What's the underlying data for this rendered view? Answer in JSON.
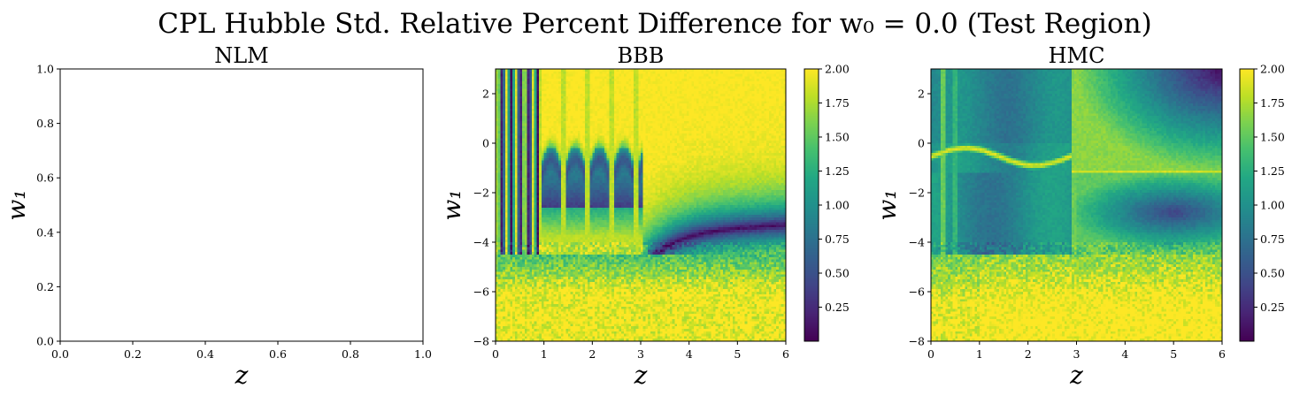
{
  "figure": {
    "title": "CPL Hubble Std. Relative Percent Difference for w₀ = 0.0 (Test Region)"
  },
  "chart_data": [
    {
      "type": "heatmap",
      "title": "NLM",
      "xlabel": "z",
      "ylabel": "w₁",
      "xlim": [
        0.0,
        1.0
      ],
      "ylim": [
        0.0,
        1.0
      ],
      "xticks": [
        "0.0",
        "0.2",
        "0.4",
        "0.6",
        "0.8",
        "1.0"
      ],
      "yticks": [
        "0.0",
        "0.2",
        "0.4",
        "0.6",
        "0.8",
        "1.0"
      ],
      "empty": true
    },
    {
      "type": "heatmap",
      "title": "BBB",
      "xlabel": "z",
      "ylabel": "w₁",
      "xlim": [
        0,
        6
      ],
      "ylim": [
        -8,
        3
      ],
      "xticks": [
        "0",
        "1",
        "2",
        "3",
        "4",
        "5",
        "6"
      ],
      "yticks": [
        "−8",
        "−6",
        "−4",
        "−2",
        "0",
        "2"
      ],
      "colormap": "viridis",
      "clim": [
        0.0,
        2.0
      ],
      "colorbar_ticks": [
        "0.25",
        "0.50",
        "0.75",
        "1.00",
        "1.25",
        "1.50",
        "1.75",
        "2.00"
      ],
      "grid_resolution": [
        120,
        110
      ]
    },
    {
      "type": "heatmap",
      "title": "HMC",
      "xlabel": "z",
      "ylabel": "w₁",
      "xlim": [
        0,
        6
      ],
      "ylim": [
        -8,
        3
      ],
      "xticks": [
        "0",
        "1",
        "2",
        "3",
        "4",
        "5",
        "6"
      ],
      "yticks": [
        "−8",
        "−6",
        "−4",
        "−2",
        "0",
        "2"
      ],
      "colormap": "viridis",
      "clim": [
        0.0,
        2.0
      ],
      "colorbar_ticks": [
        "0.25",
        "0.50",
        "0.75",
        "1.00",
        "1.25",
        "1.50",
        "1.75",
        "2.00"
      ],
      "grid_resolution": [
        120,
        110
      ]
    }
  ]
}
